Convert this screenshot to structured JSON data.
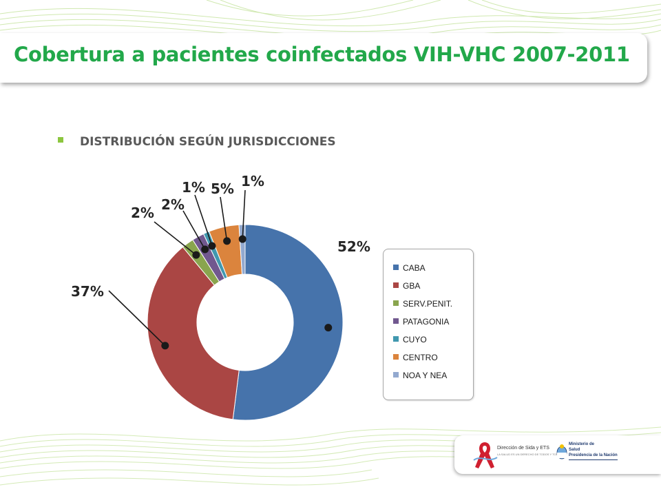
{
  "slide": {
    "title": "Cobertura a pacientes coinfectados VIH-VHC 2007-2011",
    "subtitle": "DISTRIBUCIÓN SEGÚN JURISDICCIONES"
  },
  "chart_data": {
    "type": "pie",
    "variant": "donut",
    "title": "",
    "categories": [
      "CABA",
      "GBA",
      "SERV.PENIT.",
      "PATAGONIA",
      "CUYO",
      "CENTRO",
      "NOA Y NEA"
    ],
    "values": [
      52,
      37,
      2,
      2,
      1,
      5,
      1
    ],
    "data_labels": [
      "52%",
      "37%",
      "2%",
      "2%",
      "1%",
      "5%",
      "1%"
    ],
    "colors": [
      "#4673ab",
      "#aa4644",
      "#89a54e",
      "#71588f",
      "#4198af",
      "#db843d",
      "#93a9cf"
    ],
    "legend": {
      "position": "right",
      "entries": [
        "CABA",
        "GBA",
        "SERV.PENIT.",
        "PATAGONIA",
        "CUYO",
        "CENTRO",
        "NOA Y NEA"
      ]
    }
  },
  "footer": {
    "logo_sida_line1": "Dirección de Sida y ETS",
    "logo_sida_line2": "LA SALUD ES UN DERECHO DE TODOS Y TODAS",
    "logo_min_line1": "Ministerio de",
    "logo_min_line2": "Salud",
    "logo_min_line3": "Presidencia de la Nación",
    "ribbon_icon": "red-ribbon-icon",
    "seal_icon": "argentina-seal-icon"
  }
}
